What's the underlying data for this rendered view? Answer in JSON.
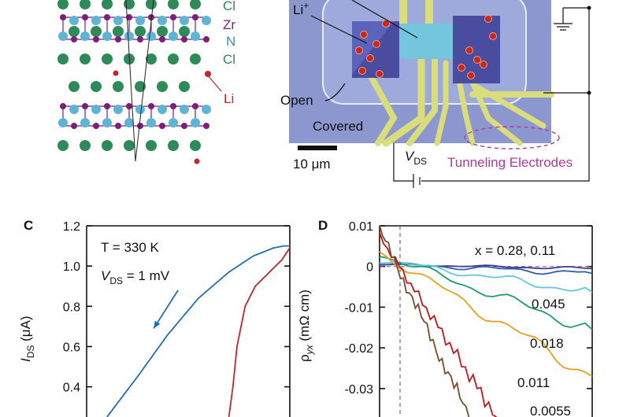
{
  "panelA": {
    "legend": [
      "Cl",
      "Zr",
      "N",
      "Cl"
    ],
    "li_label": "Li",
    "colors": {
      "cl": "#2e8b57",
      "zr": "#7b1f7a",
      "n": "#5fb4d6",
      "li": "#c0262d"
    }
  },
  "panelB": {
    "li_label": "Li",
    "li_sup": "+",
    "open_label": "Open",
    "covered_label": "Covered",
    "scalebar_label": "10 μm",
    "vds_label": "V",
    "vds_sub": "DS",
    "tunneling_label": "Tunneling Electrodes",
    "colors": {
      "substrate": "#8d97cf",
      "electrode": "#d9dd7c",
      "channel": "#74c6dc",
      "pad": "#4a4ca0",
      "dot": "#c8281e",
      "magenta": "#b03aa0"
    }
  },
  "panelC": {
    "letter": "C",
    "temp_label": "T = 330 K",
    "vds_label": "V",
    "vds_sub": "DS",
    "vds_value": " = 1 mV",
    "ylabel": "I",
    "ylabel_sub": "DS",
    "ylabel_unit": " (μA)"
  },
  "panelD": {
    "letter": "D",
    "ylabel": "ρ",
    "ylabel_sub": "yx",
    "ylabel_unit": " (mΩ cm)",
    "x_label": "x = 0.28, 0.11",
    "curve_labels": [
      "0.045",
      "0.018",
      "0.011",
      "0.0055"
    ]
  },
  "chart_data": [
    {
      "type": "line",
      "panel": "C",
      "xlabel": "",
      "ylabel": "I_DS (μA)",
      "ylim": [
        0.25,
        1.2
      ],
      "y_ticks": [
        0.4,
        0.6,
        0.8,
        1.0,
        1.2
      ],
      "y_tick_labels": [
        "0.4",
        "0.6",
        "0.8",
        "1.0",
        "1.2"
      ],
      "series": [
        {
          "color": "#1f6fb4",
          "x": [
            0.1,
            0.25,
            0.4,
            0.55,
            0.7,
            0.82,
            0.92,
            0.97,
            1.0
          ],
          "y": [
            0.25,
            0.45,
            0.66,
            0.84,
            0.97,
            1.05,
            1.09,
            1.1,
            1.1
          ]
        },
        {
          "color": "#c0262d",
          "x": [
            0.7,
            0.72,
            0.74,
            0.78,
            0.83,
            0.9,
            0.96,
            1.0
          ],
          "y": [
            0.25,
            0.4,
            0.6,
            0.8,
            0.9,
            0.97,
            1.03,
            1.09
          ]
        }
      ],
      "arrow": {
        "color": "#1f6fb4",
        "from": [
          0.45,
          0.88
        ],
        "to": [
          0.33,
          0.69
        ]
      }
    },
    {
      "type": "line",
      "panel": "D",
      "xlabel": "",
      "ylabel": "ρ_yx (mΩ cm)",
      "ylim": [
        -0.037,
        0.01
      ],
      "y_ticks": [
        0.01,
        0,
        -0.01,
        -0.02,
        -0.03
      ],
      "y_tick_labels": [
        "0.01",
        "0",
        "-0.01",
        "-0.02",
        "-0.03"
      ],
      "grid": false,
      "series": [
        {
          "name": "0.28",
          "color": "#3b3b8f",
          "x": [
            0,
            1
          ],
          "y": [
            0.0005,
            -0.0005
          ]
        },
        {
          "name": "0.11",
          "color": "#2c5fa8",
          "x": [
            0,
            1
          ],
          "y": [
            0.0007,
            -0.0017
          ]
        },
        {
          "name": "0.045",
          "color": "#66c6e0",
          "x": [
            0,
            1
          ],
          "y": [
            0.0015,
            -0.0063
          ]
        },
        {
          "name": "0.018",
          "color": "#1a9e6a",
          "x": [
            0,
            1
          ],
          "y": [
            0.003,
            -0.0155
          ]
        },
        {
          "name": "0.011",
          "color": "#e8a020",
          "x": [
            0,
            1
          ],
          "y": [
            0.0035,
            -0.027
          ]
        },
        {
          "name": "0.0055",
          "color": "#c4161c",
          "x": [
            0,
            0.55
          ],
          "y": [
            0.0075,
            -0.037
          ]
        },
        {
          "name": "",
          "color": "#7b4a2e",
          "x": [
            0,
            0.42
          ],
          "y": [
            0.009,
            -0.037
          ]
        }
      ]
    }
  ]
}
